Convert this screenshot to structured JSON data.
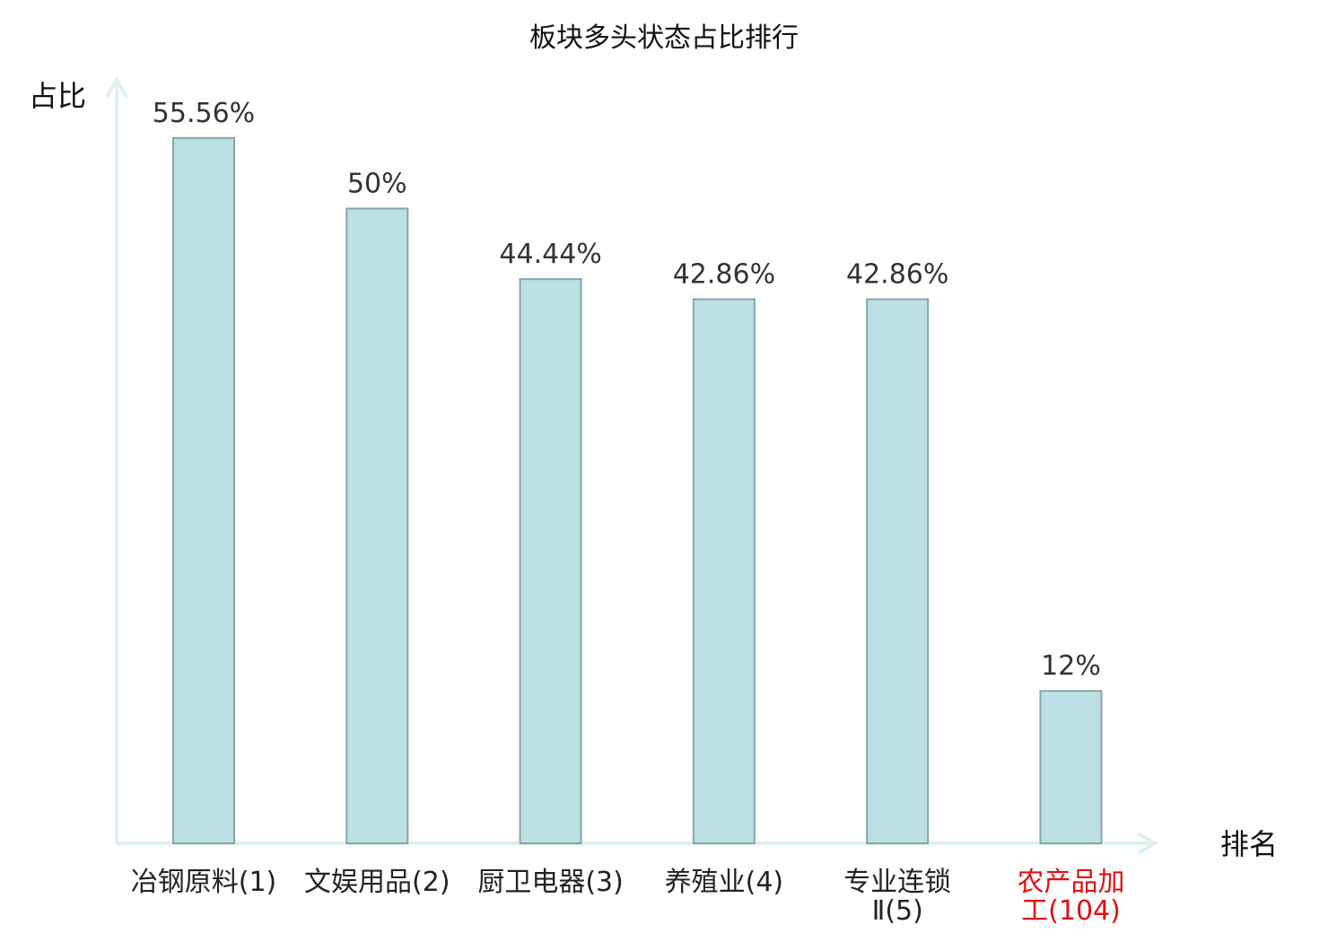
{
  "chart_data": {
    "type": "bar",
    "title": "板块多头状态占比排行",
    "xlabel": "排名",
    "ylabel": "占比",
    "ylim": [
      0,
      60
    ],
    "grid": false,
    "categories": [
      "冶钢原料(1)",
      "文娱用品(2)",
      "厨卫电器(3)",
      "养殖业(4)",
      "专业连锁II(5)",
      "农产品加工(104)"
    ],
    "category_lines": [
      [
        "冶钢原料(1)"
      ],
      [
        "文娱用品(2)"
      ],
      [
        "厨卫电器(3)"
      ],
      [
        "养殖业(4)"
      ],
      [
        "专业连锁",
        "Ⅱ(5)"
      ],
      [
        "农产品加",
        "工(104)"
      ]
    ],
    "values": [
      55.56,
      50,
      44.44,
      42.86,
      42.86,
      12
    ],
    "value_labels": [
      "55.56%",
      "50%",
      "44.44%",
      "42.86%",
      "42.86%",
      "12%"
    ],
    "highlight_index": 5,
    "colors": {
      "bar_fill": "#bce0e3",
      "bar_stroke": "#86a6aa",
      "axis": "#dcf1ee",
      "tick_text": "#222222",
      "highlight_text": "#e01010"
    }
  }
}
